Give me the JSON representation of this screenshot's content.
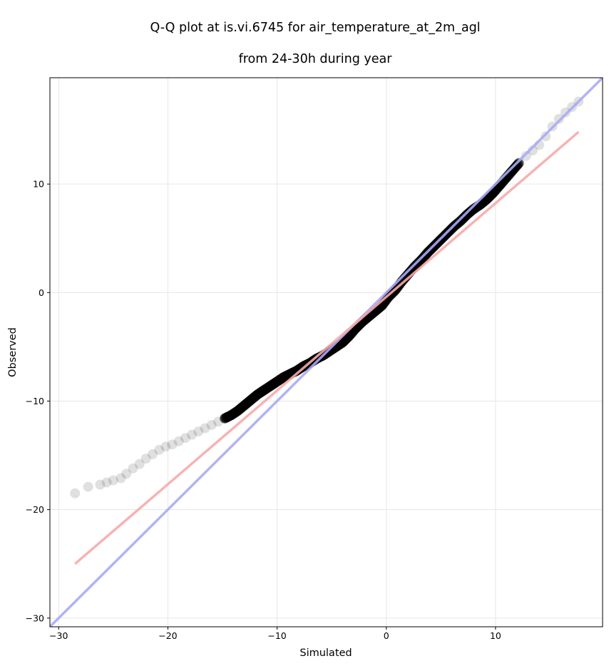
{
  "chart_data": {
    "type": "scatter",
    "title_line1": "Q-Q plot at is.vi.6745 for air_temperature_at_2m_agl",
    "title_line2": "from 24-30h during year",
    "xlabel": "Simulated",
    "ylabel": "Observed",
    "xlim": [
      -30.8,
      19.8
    ],
    "ylim": [
      -30.8,
      19.8
    ],
    "x_ticks": [
      -30,
      -20,
      -10,
      0,
      10
    ],
    "y_ticks": [
      -30,
      -20,
      -10,
      0,
      10
    ],
    "x_tick_labels": [
      "−30",
      "−20",
      "−10",
      "0",
      "10"
    ],
    "y_tick_labels": [
      "−30",
      "−20",
      "−10",
      "0",
      "10"
    ],
    "grid": true,
    "colors": {
      "points": "#000000",
      "identity_line": "#aaaaf8",
      "fit_line": "#f7aaaa"
    },
    "identity_line": {
      "x": [
        -30.8,
        19.8
      ],
      "y": [
        -30.8,
        19.8
      ]
    },
    "fit_line": {
      "x": [
        -28.5,
        17.6
      ],
      "y": [
        -25.0,
        14.8
      ]
    },
    "points": {
      "x": [
        -28.5,
        -27.3,
        -26.2,
        -25.6,
        -25.0,
        -24.3,
        -23.8,
        -23.2,
        -22.6,
        -22.0,
        -21.4,
        -20.8,
        -20.2,
        -19.6,
        -19.0,
        -18.4,
        -17.8,
        -17.2,
        -16.6,
        -16.0,
        -15.4,
        -14.8,
        -14.2,
        -13.6,
        -13.0,
        -12.4,
        -11.8,
        -11.2,
        -10.6,
        -10.0,
        -9.4,
        -8.8,
        -8.2,
        -7.6,
        -7.0,
        -6.4,
        -5.8,
        -5.2,
        -4.6,
        -4.0,
        -3.4,
        -2.8,
        -2.2,
        -1.6,
        -1.0,
        -0.4,
        0.2,
        0.8,
        1.4,
        2.0,
        2.6,
        3.2,
        3.8,
        4.4,
        5.0,
        5.6,
        6.2,
        6.8,
        7.4,
        8.0,
        8.6,
        9.2,
        9.8,
        10.4,
        11.0,
        11.6,
        12.2,
        12.8,
        13.4,
        14.0,
        14.6,
        15.2,
        15.8,
        16.4,
        17.0,
        17.6
      ],
      "y": [
        -18.5,
        -17.9,
        -17.7,
        -17.5,
        -17.3,
        -17.1,
        -16.7,
        -16.2,
        -15.8,
        -15.3,
        -14.9,
        -14.5,
        -14.2,
        -14.0,
        -13.7,
        -13.4,
        -13.1,
        -12.8,
        -12.5,
        -12.2,
        -11.9,
        -11.6,
        -11.3,
        -10.9,
        -10.4,
        -9.9,
        -9.4,
        -9.0,
        -8.6,
        -8.2,
        -7.8,
        -7.5,
        -7.2,
        -6.8,
        -6.5,
        -6.1,
        -5.8,
        -5.4,
        -5.0,
        -4.6,
        -4.0,
        -3.3,
        -2.7,
        -2.2,
        -1.7,
        -1.2,
        -0.4,
        0.2,
        1.0,
        1.7,
        2.4,
        3.0,
        3.7,
        4.3,
        4.9,
        5.5,
        6.1,
        6.6,
        7.2,
        7.7,
        8.1,
        8.6,
        9.2,
        9.9,
        10.6,
        11.3,
        12.0,
        12.6,
        13.1,
        13.6,
        14.4,
        15.3,
        16.0,
        16.6,
        17.1,
        17.6
      ]
    }
  }
}
